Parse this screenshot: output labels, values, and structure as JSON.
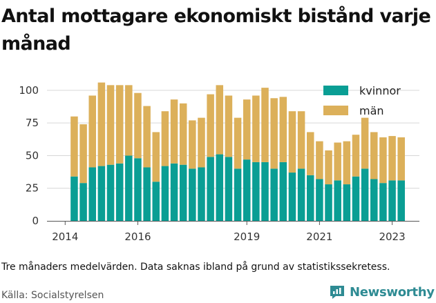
{
  "title": "Antal mottagare ekonomiskt bistånd varje månad",
  "note": "Tre månaders medelvärden. Data saknas ibland på grund av statistikssekretess.",
  "source": "Källa: Socialstyrelsen",
  "brand": {
    "name": "Newsworthy",
    "color": "#2e8b93"
  },
  "colors": {
    "kvinnor": "#0a9e94",
    "man": "#dcb05a",
    "grid": "#d6d6d6",
    "axis": "#555555"
  },
  "chart_data": {
    "type": "bar",
    "stacked": true,
    "ylim": [
      0,
      110
    ],
    "yticks": [
      0,
      25,
      50,
      75,
      100
    ],
    "ytick_labels": [
      "0",
      "25",
      "50",
      "75",
      "100"
    ],
    "xticks": [
      2014,
      2016,
      2019,
      2021,
      2023
    ],
    "xtick_labels": [
      "2014",
      "2016",
      "2019",
      "2021",
      "2023"
    ],
    "grid": true,
    "legend_position": "top-right",
    "x": [
      2014.25,
      2014.5,
      2014.75,
      2015.0,
      2015.25,
      2015.5,
      2015.75,
      2016.0,
      2016.25,
      2016.5,
      2016.75,
      2017.0,
      2017.25,
      2017.5,
      2017.75,
      2018.0,
      2018.25,
      2018.5,
      2018.75,
      2019.0,
      2019.25,
      2019.5,
      2019.75,
      2020.0,
      2020.25,
      2020.5,
      2020.75,
      2021.0,
      2021.25,
      2021.5,
      2021.75,
      2022.0,
      2022.25,
      2022.5,
      2022.75,
      2023.0,
      2023.25
    ],
    "series": [
      {
        "name": "kvinnor",
        "values": [
          34,
          29,
          41,
          42,
          43,
          44,
          50,
          48,
          41,
          30,
          42,
          44,
          43,
          40,
          41,
          49,
          51,
          49,
          40,
          47,
          45,
          45,
          40,
          45,
          37,
          40,
          35,
          32,
          28,
          31,
          28,
          34,
          40,
          32,
          29,
          31,
          31
        ]
      },
      {
        "name": "män",
        "values": [
          46,
          45,
          55,
          64,
          61,
          60,
          54,
          50,
          47,
          38,
          42,
          49,
          47,
          37,
          38,
          48,
          53,
          47,
          39,
          46,
          51,
          57,
          54,
          50,
          47,
          44,
          33,
          29,
          26,
          29,
          33,
          32,
          39,
          36,
          35,
          34,
          33
        ]
      }
    ]
  }
}
